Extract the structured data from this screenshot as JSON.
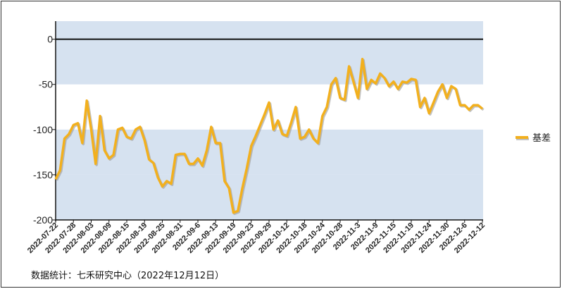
{
  "source_note": "数据统计：七禾研究中心（2022年12月12日）",
  "chart_data": {
    "type": "line",
    "series": [
      {
        "name": "基差",
        "color": "#F2B01E",
        "values": [
          -155,
          -145,
          -110,
          -105,
          -95,
          -93,
          -115,
          -68,
          -100,
          -138,
          -85,
          -123,
          -132,
          -128,
          -100,
          -98,
          -108,
          -110,
          -100,
          -97,
          -112,
          -133,
          -137,
          -153,
          -163,
          -157,
          -160,
          -128,
          -127,
          -127,
          -138,
          -138,
          -132,
          -140,
          -123,
          -97,
          -115,
          -115,
          -157,
          -165,
          -192,
          -190,
          -165,
          -143,
          -118,
          -107,
          -95,
          -83,
          -70,
          -100,
          -90,
          -105,
          -107,
          -92,
          -75,
          -110,
          -108,
          -100,
          -110,
          -115,
          -85,
          -75,
          -50,
          -43,
          -65,
          -67,
          -30,
          -47,
          -65,
          -22,
          -55,
          -45,
          -49,
          -38,
          -43,
          -52,
          -47,
          -55,
          -47,
          -48,
          -44,
          -45,
          -75,
          -65,
          -82,
          -70,
          -58,
          -50,
          -65,
          -52,
          -55,
          -73,
          -73,
          -78,
          -73,
          -73,
          -77
        ]
      }
    ],
    "x_tick_labels": [
      "2022-07-22",
      "2022-07-28",
      "2022-08-03",
      "2022-08-09",
      "2022-08-15",
      "2022-08-19",
      "2022-08-25",
      "2022-08-31",
      "2022-09-6",
      "2022-09-13",
      "2022-09-19",
      "2022-09-23",
      "2022-09-29",
      "2022-10-12",
      "2022-10-18",
      "2022-10-24",
      "2022-10-28",
      "2022-11-3",
      "2022-11-9",
      "2022-11-15",
      "2022-11-19",
      "2022-11-24",
      "2022-11-30",
      "2022-12-6",
      "2022-12-12"
    ],
    "y_ticks": [
      0,
      -50,
      -100,
      -150,
      -200
    ],
    "ylim": [
      -200,
      20
    ],
    "bands": [
      [
        -50,
        0
      ],
      [
        -150,
        -100
      ],
      [
        -200,
        -150
      ]
    ],
    "band_color": "#D6E2F0",
    "zero_line": true,
    "legend_position": "right"
  }
}
